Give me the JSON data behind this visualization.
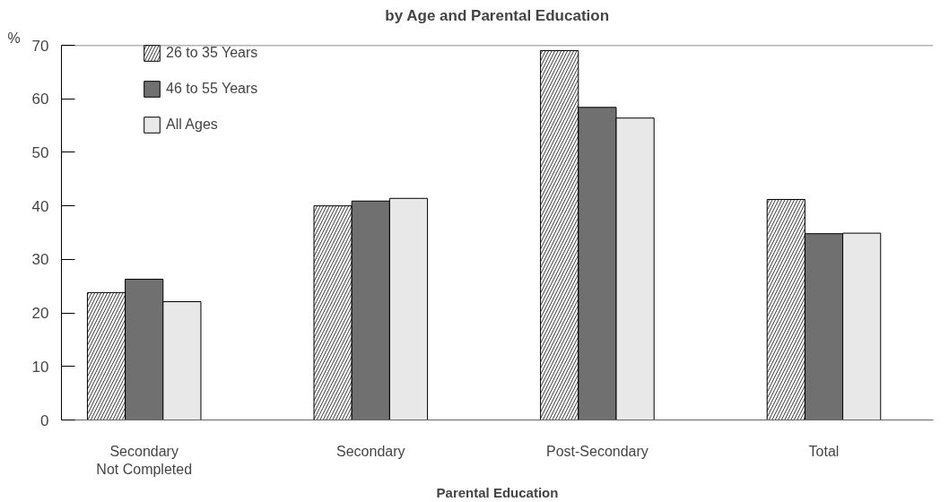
{
  "chart_data": {
    "type": "bar",
    "title": "by Age and Parental Education",
    "xlabel": "Parental Education",
    "ylabel": "%",
    "categories": [
      "Secondary\nNot Completed",
      "Secondary",
      "Post-Secondary",
      "Total"
    ],
    "series": [
      {
        "name": "26 to 35 Years",
        "color": "#ffffff",
        "values": [
          23.8,
          40.0,
          69.0,
          41.2
        ]
      },
      {
        "name": "46 to 55 Years",
        "color": "#707070",
        "values": [
          26.3,
          40.9,
          58.4,
          34.8
        ]
      },
      {
        "name": "All Ages",
        "color": "#e8e8e8",
        "values": [
          22.1,
          41.4,
          56.4,
          34.9
        ]
      }
    ],
    "ylim": [
      0,
      70
    ],
    "yticks": [
      0,
      10,
      20,
      30,
      40,
      50,
      60,
      70
    ],
    "grid": false,
    "legend": "top left"
  }
}
